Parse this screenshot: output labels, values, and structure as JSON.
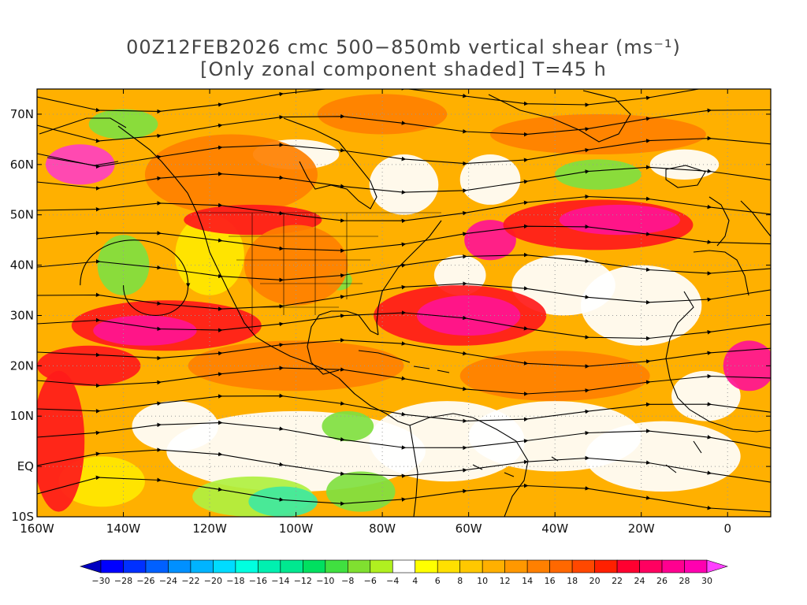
{
  "title": {
    "line1": "00Z12FEB2026 cmc 500−850mb vertical shear (ms⁻¹)",
    "line2": "[Only zonal component shaded] T=45 h"
  },
  "map": {
    "lon_range": [
      -160,
      10
    ],
    "lat_range": [
      -10,
      75
    ],
    "lon_ticks": [
      "160W",
      "140W",
      "120W",
      "100W",
      "80W",
      "60W",
      "40W",
      "20W",
      "0"
    ],
    "lat_ticks": [
      "70N",
      "60N",
      "50N",
      "40N",
      "30N",
      "20N",
      "10N",
      "EQ",
      "10S"
    ]
  },
  "colorbar": {
    "labels": [
      "-30",
      "-28",
      "-26",
      "-24",
      "-22",
      "-20",
      "-18",
      "-16",
      "-14",
      "-12",
      "-10",
      "-8",
      "-6",
      "-4",
      "4",
      "6",
      "8",
      "10",
      "12",
      "14",
      "16",
      "18",
      "20",
      "22",
      "24",
      "26",
      "28",
      "30"
    ],
    "colors": [
      "#0000ff",
      "#0030ff",
      "#0060ff",
      "#0090ff",
      "#00b4ff",
      "#00dcff",
      "#00ffe0",
      "#00f0b0",
      "#00e890",
      "#00e060",
      "#40e040",
      "#80e030",
      "#b0f020",
      "#ffffff",
      "#ffff00",
      "#ffe000",
      "#ffc800",
      "#ffb000",
      "#ff9800",
      "#ff8000",
      "#ff6800",
      "#ff4800",
      "#ff2000",
      "#ff0030",
      "#ff0060",
      "#ff0090",
      "#ff00b0"
    ],
    "end_colors": {
      "low": "#0000c0",
      "high": "#ff40ff"
    }
  },
  "palette": {
    "white": "#ffffff",
    "yellow": "#ffe800",
    "orange_light": "#ffb000",
    "orange": "#ff8000",
    "red_orange": "#ff5000",
    "red": "#ff1a1a",
    "magenta": "#ff1493",
    "hot_pink": "#ff40c0",
    "green": "#80e040",
    "green_light": "#b0f040",
    "teal": "#40e8a0",
    "cyan": "#30f0d0"
  }
}
